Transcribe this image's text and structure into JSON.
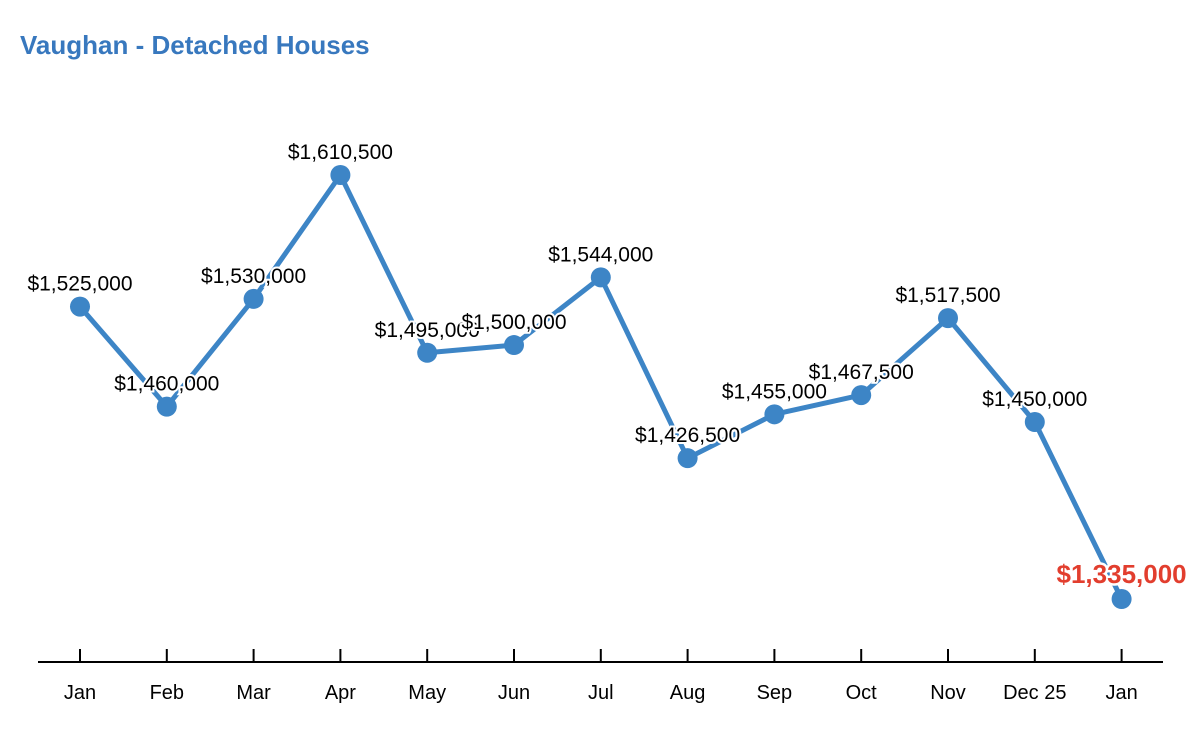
{
  "title": "Vaughan - Detached Houses",
  "colors": {
    "title": "#3878be",
    "line": "#3d85c6",
    "marker": "#3d85c6",
    "data_label": "#000000",
    "highlight_label": "#e23e2e",
    "axis": "#000000",
    "background": "#ffffff"
  },
  "chart_data": {
    "type": "line",
    "title": "Vaughan - Detached Houses",
    "categories": [
      "Jan",
      "Feb",
      "Mar",
      "Apr",
      "May",
      "Jun",
      "Jul",
      "Aug",
      "Sep",
      "Oct",
      "Nov",
      "Dec 25",
      "Jan"
    ],
    "values": [
      1525000,
      1460000,
      1530000,
      1610500,
      1495000,
      1500000,
      1544000,
      1426500,
      1455000,
      1467500,
      1517500,
      1450000,
      1335000
    ],
    "point_labels": [
      "$1,525,000",
      "$1,460,000",
      "$1,530,000",
      "$1,610,500",
      "$1,495,000",
      "$1,500,000",
      "$1,544,000",
      "$1,426,500",
      "$1,455,000",
      "$1,467,500",
      "$1,517,500",
      "$1,450,000",
      "$1,335,000"
    ],
    "highlight_index": 12,
    "xlabel": "",
    "ylabel": "",
    "legend": "none",
    "grid": false,
    "y_axis_visible": false,
    "ylim": [
      1335000,
      1610500
    ]
  }
}
